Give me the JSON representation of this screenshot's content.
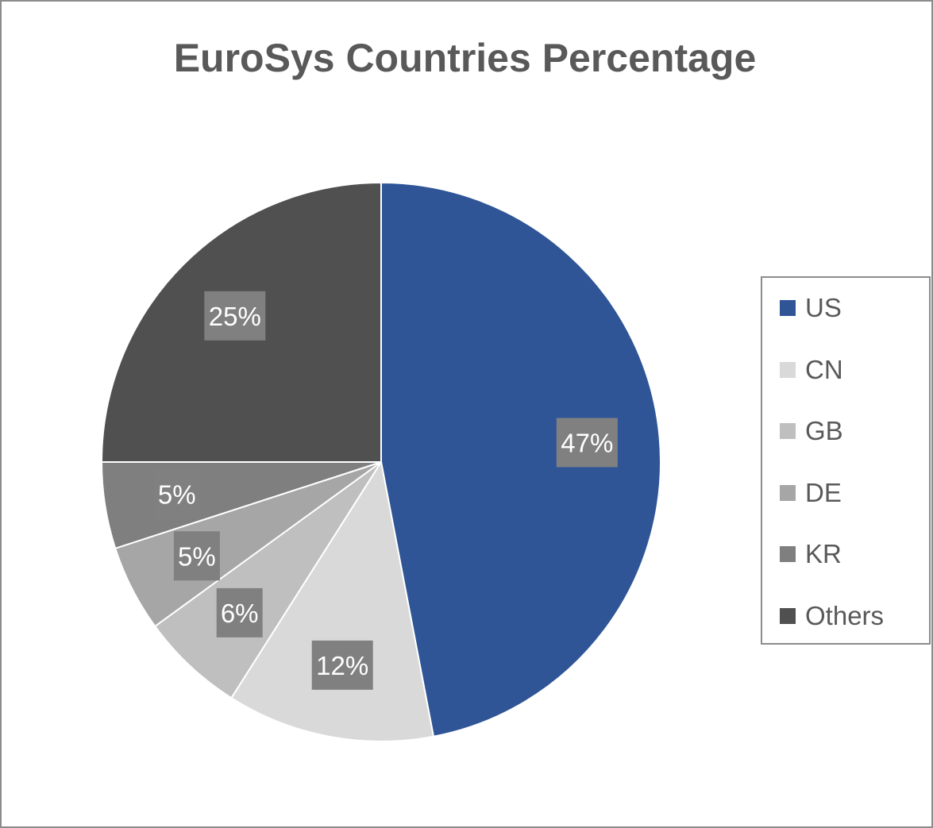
{
  "chart_data": {
    "type": "pie",
    "title": "EuroSys Countries Percentage",
    "categories": [
      "US",
      "CN",
      "GB",
      "DE",
      "KR",
      "Others"
    ],
    "values": [
      47,
      12,
      6,
      5,
      5,
      25
    ],
    "labels": [
      "47%",
      "12%",
      "6%",
      "5%",
      "5%",
      "25%"
    ],
    "colors": [
      "#2f5597",
      "#d9d9d9",
      "#bfbfbf",
      "#a6a6a6",
      "#7f7f7f",
      "#505050"
    ],
    "label_box_color": "#808080",
    "legend_placement": "right"
  }
}
